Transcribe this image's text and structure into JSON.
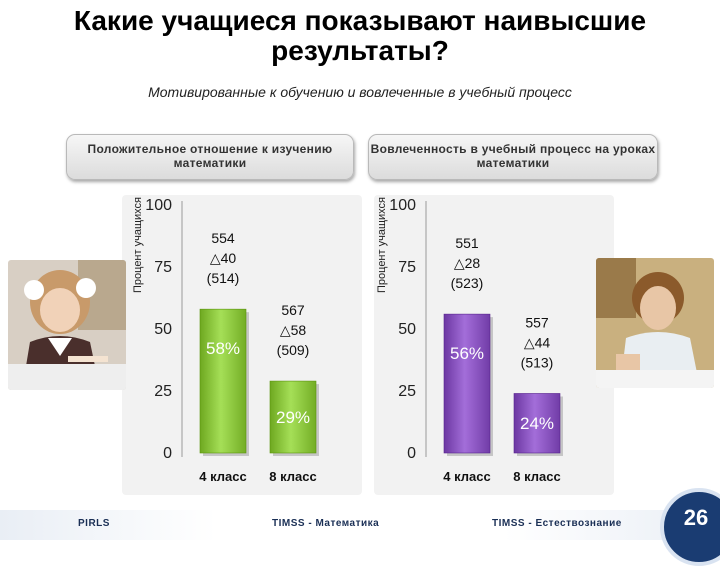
{
  "slide": {
    "title": "Какие учащиеся показывают наивысшие результаты?",
    "subtitle": "Мотивированные к обучению и вовлеченные в учебный процесс",
    "page_number": "26"
  },
  "footer": {
    "left": "PIRLS",
    "middle": "TIMSS - Математика",
    "right": "TIMSS - Естествознание"
  },
  "panels": [
    {
      "header": "Положительное отношение к изучению математики",
      "ylabel": "Процент учащихся"
    },
    {
      "header": "Вовлеченность в учебный процесс на уроках математики",
      "ylabel": "Процент учащихся"
    }
  ],
  "images": [
    "student-girl-writing",
    "student-boy-at-desk"
  ],
  "colors": {
    "green": "#8cc63e",
    "purple": "#8a55c0",
    "panel_bg": "#f2f2f2"
  },
  "chart_data": [
    {
      "type": "bar",
      "title": "Положительное отношение к изучению математики",
      "ylabel": "Процент учащихся",
      "categories": [
        "4 класс",
        "8 класс"
      ],
      "values": [
        58,
        29
      ],
      "value_labels": [
        "58%",
        "29%"
      ],
      "annotations": [
        {
          "score": "554",
          "delta": "40",
          "baseline": "(514)"
        },
        {
          "score": "567",
          "delta": "58",
          "baseline": "(509)"
        }
      ],
      "ylim": [
        0,
        100
      ],
      "yticks": [
        0,
        25,
        50,
        75,
        100
      ],
      "color": "#8cc63e"
    },
    {
      "type": "bar",
      "title": "Вовлеченность в учебный процесс на уроках математики",
      "ylabel": "Процент учащихся",
      "categories": [
        "4 класс",
        "8 класс"
      ],
      "values": [
        56,
        24
      ],
      "value_labels": [
        "56%",
        "24%"
      ],
      "annotations": [
        {
          "score": "551",
          "delta": "28",
          "baseline": "(523)"
        },
        {
          "score": "557",
          "delta": "44",
          "baseline": "(513)"
        }
      ],
      "ylim": [
        0,
        100
      ],
      "yticks": [
        0,
        25,
        50,
        75,
        100
      ],
      "color": "#8a55c0"
    }
  ]
}
